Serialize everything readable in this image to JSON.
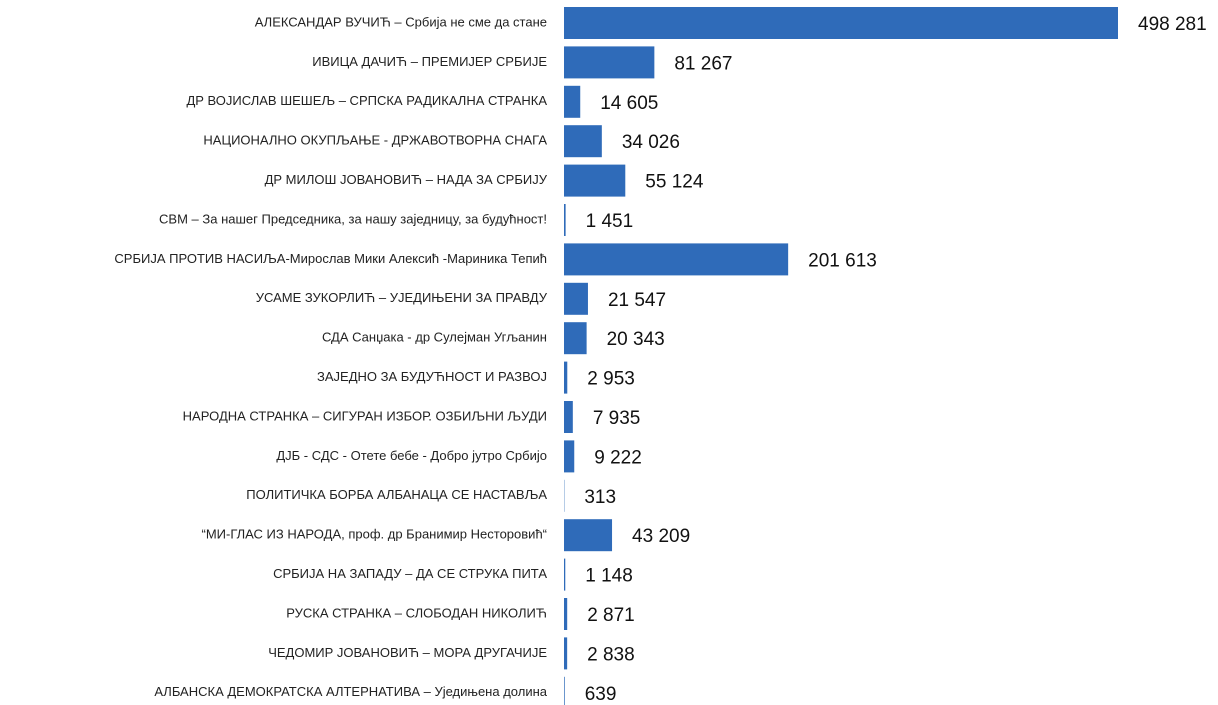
{
  "chart_data": {
    "type": "barh",
    "color": "#2f6bb9",
    "categories": [
      "АЛЕКСАНДАР ВУЧИЋ – Србија не сме да стане",
      "ИВИЦА ДАЧИЋ – ПРЕМИЈЕР СРБИЈЕ",
      "ДР ВОЈИСЛАВ ШЕШЕЉ – СРПСКА РАДИКАЛНА СТРАНКА",
      "НАЦИОНАЛНО ОКУПЉАЊЕ - ДРЖАВОТВОРНА СНАГА",
      "ДР МИЛОШ ЈОВАНОВИЋ – НАДА ЗА СРБИЈУ",
      "СВМ – За  нашег Председника, за нашу заједницу, за будућност!",
      "СРБИЈА ПРОТИВ НАСИЉА-Мирослав Мики Алексић -Мариника Тепић",
      "УСАМЕ ЗУКОРЛИЋ – УЈЕДИЊЕНИ ЗА ПРАВДУ",
      "СДА Санџака - др Сулејман Угљанин",
      "ЗАЈЕДНО ЗА БУДУЋНОСТ И РАЗВОЈ",
      "НАРОДНА СТРАНКА – СИГУРАН ИЗБОР. ОЗБИЉНИ ЉУДИ",
      "ДЈБ - СДС - Отете бебе - Добро јутро Србијо",
      "ПОЛИТИЧКА БОРБА АЛБАНАЦА СЕ НАСТАВЉА",
      "“МИ-ГЛАС ИЗ НАРОДА, проф. др Бранимир Несторовић“",
      "СРБИЈА НА ЗАПАДУ – ДА СЕ СТРУКА ПИТА",
      "РУСКА СТРАНКА – СЛОБОДАН НИКОЛИЋ",
      "ЧЕДОМИР ЈОВАНОВИЋ – МОРА ДРУГАЧИЈЕ",
      "АЛБАНСКА ДЕМОКРАТСКА АЛТЕРНАТИВА – Уједињена долина"
    ],
    "values": [
      498281,
      81267,
      14605,
      34026,
      55124,
      1451,
      201613,
      21547,
      20343,
      2953,
      7935,
      9222,
      313,
      43209,
      1148,
      2871,
      2838,
      639
    ],
    "value_labels": [
      "498 281",
      "81 267",
      "14 605",
      "34 026",
      "55 124",
      "1 451",
      "201 613",
      "21 547",
      "20 343",
      "2 953",
      "7 935",
      "9 222",
      "313",
      "43 209",
      "1 148",
      "2 871",
      "2 838",
      "639"
    ]
  }
}
